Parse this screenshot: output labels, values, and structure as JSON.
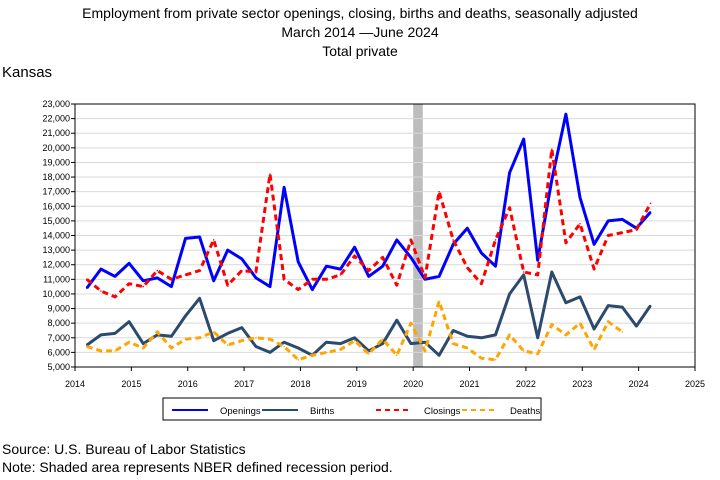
{
  "chart_data": {
    "type": "line",
    "title": "Employment from private sector openings, closing, births and deaths, seasonally adjusted",
    "subtitle": "March 2014 —June 2024",
    "subtitle2": "Total private",
    "area_label": "Kansas",
    "ylim": [
      5000,
      23000
    ],
    "y_ticks": [
      "5,000",
      "6,000",
      "7,000",
      "8,000",
      "9,000",
      "10,000",
      "11,000",
      "12,000",
      "13,000",
      "14,000",
      "15,000",
      "16,000",
      "17,000",
      "18,000",
      "19,000",
      "20,000",
      "21,000",
      "22,000",
      "23,000"
    ],
    "x_ticks": [
      "2014",
      "2015",
      "2016",
      "2017",
      "2018",
      "2019",
      "2020",
      "2021",
      "2022",
      "2023",
      "2024",
      "2025"
    ],
    "xlim": [
      2014,
      2025
    ],
    "recession": [
      2020.0,
      2020.17
    ],
    "grid": true,
    "legend_position": "bottom",
    "series": [
      {
        "name": "Openings",
        "color": "#0000ff",
        "dash": "solid",
        "x": [
          2014.21,
          2014.46,
          2014.71,
          2014.96,
          2015.21,
          2015.46,
          2015.71,
          2015.96,
          2016.21,
          2016.46,
          2016.71,
          2016.96,
          2017.21,
          2017.46,
          2017.71,
          2017.96,
          2018.21,
          2018.46,
          2018.71,
          2018.96,
          2019.21,
          2019.46,
          2019.71,
          2019.96,
          2020.21,
          2020.46,
          2020.71,
          2020.96,
          2021.21,
          2021.46,
          2021.71,
          2021.96,
          2022.21,
          2022.46,
          2022.71,
          2022.96,
          2023.21,
          2023.46,
          2023.71,
          2023.96,
          2024.21
        ],
        "values": [
          10400,
          11700,
          11200,
          12100,
          10900,
          11100,
          10500,
          13800,
          13900,
          10900,
          13000,
          12400,
          11100,
          10500,
          17300,
          12200,
          10300,
          11900,
          11700,
          13200,
          11200,
          11900,
          13700,
          12500,
          11000,
          11200,
          13400,
          14500,
          12800,
          11900,
          18300,
          20600,
          12300,
          17800,
          22300,
          16600,
          13400,
          15000,
          15100,
          14500,
          15600
        ]
      },
      {
        "name": "Births",
        "color": "#2b4a6e",
        "dash": "solid",
        "x": [
          2014.21,
          2014.46,
          2014.71,
          2014.96,
          2015.21,
          2015.46,
          2015.71,
          2015.96,
          2016.21,
          2016.46,
          2016.71,
          2016.96,
          2017.21,
          2017.46,
          2017.71,
          2017.96,
          2018.21,
          2018.46,
          2018.71,
          2018.96,
          2019.21,
          2019.46,
          2019.71,
          2019.96,
          2020.21,
          2020.46,
          2020.71,
          2020.96,
          2021.21,
          2021.46,
          2021.71,
          2021.96,
          2022.21,
          2022.46,
          2022.71,
          2022.96,
          2023.21,
          2023.46,
          2023.71,
          2023.96,
          2024.21
        ],
        "values": [
          6500,
          7200,
          7300,
          8100,
          6600,
          7200,
          7100,
          8500,
          9700,
          6800,
          7300,
          7700,
          6400,
          6000,
          6700,
          6300,
          5800,
          6700,
          6600,
          7000,
          6100,
          6600,
          8200,
          6600,
          6700,
          5800,
          7500,
          7100,
          7000,
          7200,
          10000,
          11300,
          7000,
          11500,
          9400,
          9800,
          7600,
          9200,
          9100,
          7800,
          9200
        ]
      },
      {
        "name": "Closings",
        "color": "#ff0000",
        "dash": "6,4",
        "x": [
          2014.21,
          2014.46,
          2014.71,
          2014.96,
          2015.21,
          2015.46,
          2015.71,
          2015.96,
          2016.21,
          2016.46,
          2016.71,
          2016.96,
          2017.21,
          2017.46,
          2017.71,
          2017.96,
          2018.21,
          2018.46,
          2018.71,
          2018.96,
          2019.21,
          2019.46,
          2019.71,
          2019.96,
          2020.21,
          2020.46,
          2020.71,
          2020.96,
          2021.21,
          2021.46,
          2021.71,
          2021.96,
          2022.21,
          2022.46,
          2022.71,
          2022.96,
          2023.21,
          2023.46,
          2023.71,
          2023.96,
          2024.21
        ],
        "values": [
          11000,
          10200,
          9800,
          10700,
          10500,
          11600,
          11000,
          11300,
          11600,
          13700,
          10600,
          11600,
          11500,
          18200,
          11000,
          10300,
          11000,
          11000,
          11300,
          12600,
          11600,
          12500,
          10600,
          13700,
          11100,
          17000,
          13700,
          11800,
          10700,
          13700,
          15900,
          11500,
          11300,
          19900,
          13500,
          14800,
          11700,
          14000,
          14200,
          14400,
          16200
        ]
      },
      {
        "name": "Deaths",
        "color": "#ffa500",
        "dash": "6,4",
        "x": [
          2014.21,
          2014.46,
          2014.71,
          2014.96,
          2015.21,
          2015.46,
          2015.71,
          2015.96,
          2016.21,
          2016.46,
          2016.71,
          2016.96,
          2017.21,
          2017.46,
          2017.71,
          2017.96,
          2018.21,
          2018.46,
          2018.71,
          2018.96,
          2019.21,
          2019.46,
          2019.71,
          2019.96,
          2020.21,
          2020.46,
          2020.71,
          2020.96,
          2021.21,
          2021.46,
          2021.71,
          2021.96,
          2022.21,
          2022.46,
          2022.71,
          2022.96,
          2023.21,
          2023.46,
          2023.71,
          2023.96,
          2024.21
        ],
        "values": [
          6400,
          6100,
          6100,
          6700,
          6300,
          7400,
          6300,
          6900,
          7000,
          7400,
          6500,
          6800,
          7000,
          6900,
          6400,
          5500,
          5800,
          6000,
          6200,
          6800,
          5900,
          6900,
          5800,
          8000,
          6100,
          9500,
          6600,
          6300,
          5600,
          5500,
          7200,
          6100,
          5900,
          7900,
          7200,
          8000,
          6200,
          8100,
          7400,
          null,
          null
        ]
      }
    ],
    "legend": [
      "Openings",
      "Births",
      "Closings",
      "Deaths"
    ]
  },
  "footer": {
    "source": "Source: U.S. Bureau of Labor Statistics",
    "note": "Note: Shaded area represents NBER defined recession period."
  }
}
